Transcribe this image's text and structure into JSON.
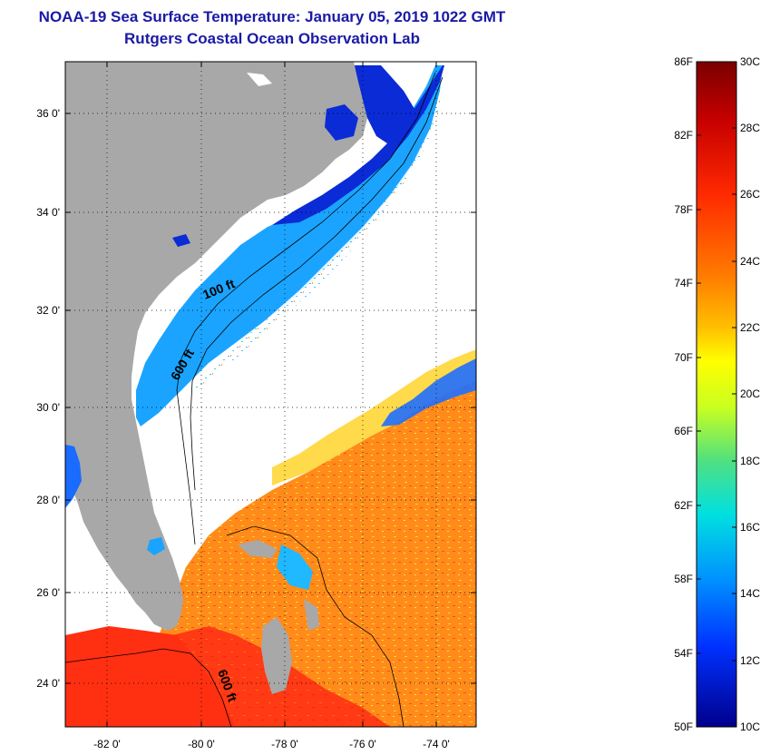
{
  "title": {
    "line1": "NOAA-19 Sea Surface Temperature:  January 05, 2019 1022 GMT",
    "line2": "Rutgers Coastal Ocean Observation Lab"
  },
  "map": {
    "lat_labels": [
      "36 0'",
      "34 0'",
      "32 0'",
      "30 0'",
      "28 0'",
      "26 0'",
      "24 0'"
    ],
    "lon_labels": [
      "-82 0'",
      "-80 0'",
      "-78 0'",
      "-76 0'",
      "-74 0'"
    ],
    "depth_labels": [
      "100 ft",
      "600 ft",
      "600 ft"
    ],
    "colors": {
      "land": "#a8a8a8",
      "cloud": "#ffffff",
      "cold": "#0a2bd6",
      "cool": "#1fa2ff",
      "warm": "#ff9a1a",
      "hot": "#ff3a14",
      "very_hot": "#ff2a10"
    }
  },
  "legend": {
    "fahrenheit_labels": [
      "86F",
      "82F",
      "78F",
      "74F",
      "70F",
      "66F",
      "62F",
      "58F",
      "54F",
      "50F"
    ],
    "celsius_labels": [
      "30C",
      "28C",
      "26C",
      "24C",
      "22C",
      "20C",
      "18C",
      "16C",
      "14C",
      "12C",
      "10C"
    ],
    "gradient": [
      "#7a0000",
      "#c80000",
      "#ff2a00",
      "#ff7a00",
      "#ffc000",
      "#ffff00",
      "#c8ff20",
      "#50e080",
      "#00e0e0",
      "#0090ff",
      "#0030ff",
      "#00008c"
    ]
  }
}
